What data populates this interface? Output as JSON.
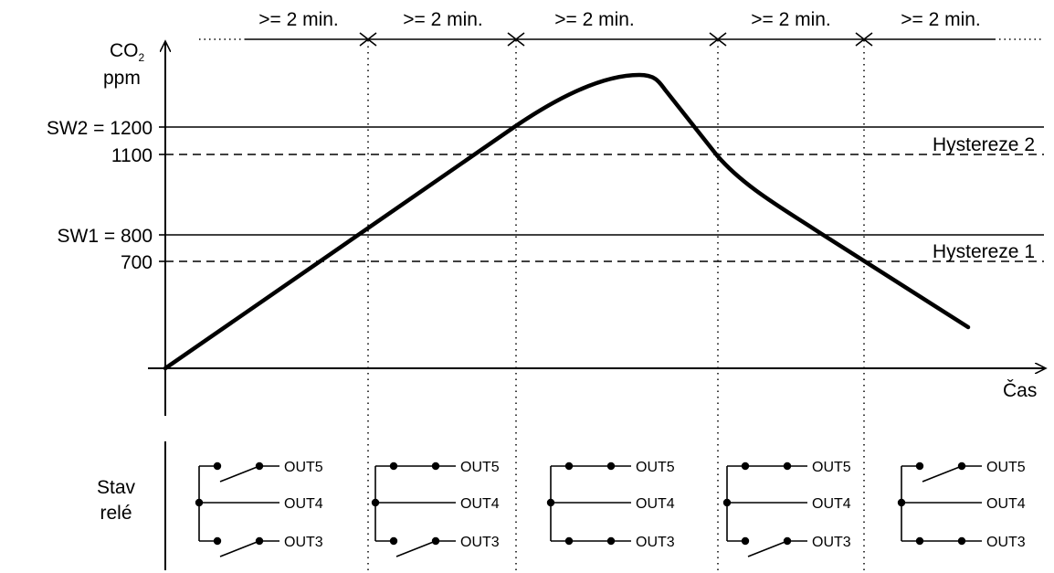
{
  "diagram": {
    "y_axis": {
      "label_main": "CO",
      "label_sub": "2",
      "label_unit": "ppm"
    },
    "x_axis": {
      "label": "Čas"
    },
    "levels": [
      {
        "text": "SW2 = 1200",
        "value": 1200,
        "style": "solid"
      },
      {
        "text": "1100",
        "value": 1100,
        "style": "dashed"
      },
      {
        "text": "SW1 = 800",
        "value": 800,
        "style": "solid"
      },
      {
        "text": "700",
        "value": 700,
        "style": "dashed"
      }
    ],
    "hysteresis_labels": [
      "Hystereze 2",
      "Hystereze 1"
    ],
    "interval_labels": [
      ">= 2 min.",
      ">= 2 min.",
      ">= 2 min.",
      ">= 2 min.",
      ">= 2 min."
    ],
    "relay_section": {
      "title_line1": "Stav",
      "title_line2": "relé"
    },
    "relay_states": [
      {
        "out5": "open",
        "out3": "open"
      },
      {
        "out5": "closed",
        "out3": "open"
      },
      {
        "out5": "closed",
        "out3": "closed"
      },
      {
        "out5": "closed",
        "out3": "open"
      },
      {
        "out5": "open",
        "out3": "closed"
      }
    ],
    "output_labels": {
      "out5": "OUT5",
      "out4": "OUT4",
      "out3": "OUT3"
    },
    "colors": {
      "line": "#000000",
      "background": "#ffffff"
    }
  }
}
